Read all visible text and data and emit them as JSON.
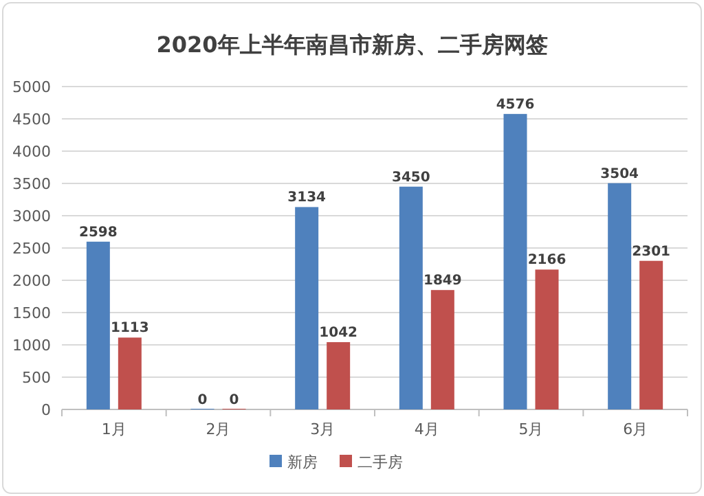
{
  "chart_data": {
    "type": "bar",
    "title": "2020年上半年南昌市新房、二手房网签",
    "categories": [
      "1月",
      "2月",
      "3月",
      "4月",
      "5月",
      "6月"
    ],
    "series": [
      {
        "name": "新房",
        "color": "#4f81bd",
        "values": [
          2598,
          0,
          3134,
          3450,
          4576,
          3504
        ]
      },
      {
        "name": "二手房",
        "color": "#c0504d",
        "values": [
          1113,
          0,
          1042,
          1849,
          2166,
          2301
        ]
      }
    ],
    "ylim": [
      0,
      5000
    ],
    "yticks": [
      0,
      500,
      1000,
      1500,
      2000,
      2500,
      3000,
      3500,
      4000,
      4500,
      5000
    ],
    "grid": "y",
    "legend": "bottom",
    "data_labels": true
  }
}
